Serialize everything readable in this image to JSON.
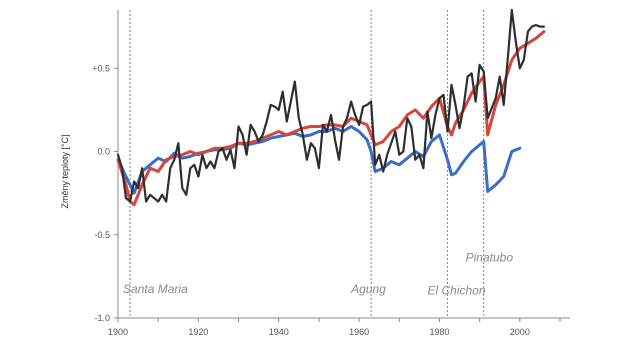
{
  "chart_data": {
    "type": "line",
    "title": "",
    "xlabel": "",
    "ylabel": "Změny teploty [°C]",
    "xlim": [
      1900,
      2010
    ],
    "ylim": [
      -1.0,
      0.85
    ],
    "x_ticks": [
      1900,
      1920,
      1940,
      1960,
      1980,
      2000
    ],
    "y_ticks": [
      {
        "value": 0.5,
        "label": "+0.5"
      },
      {
        "value": 0.0,
        "label": "0.0"
      },
      {
        "value": -0.5,
        "label": "-0.5"
      },
      {
        "value": -1.0,
        "label": "-1.0"
      }
    ],
    "grid": false,
    "series": [
      {
        "color": "#3a6cc8",
        "x": [
          1900,
          1902,
          1904,
          1906,
          1908,
          1910,
          1912,
          1914,
          1916,
          1918,
          1920,
          1922,
          1924,
          1926,
          1928,
          1930,
          1932,
          1934,
          1936,
          1938,
          1940,
          1942,
          1944,
          1946,
          1948,
          1950,
          1952,
          1954,
          1956,
          1958,
          1960,
          1962,
          1963,
          1964,
          1966,
          1968,
          1970,
          1972,
          1974,
          1976,
          1978,
          1980,
          1982,
          1983,
          1984,
          1986,
          1988,
          1990,
          1991,
          1992,
          1994,
          1996,
          1998,
          2000
        ],
        "y": [
          -0.05,
          -0.15,
          -0.25,
          -0.12,
          -0.08,
          -0.04,
          -0.06,
          -0.01,
          -0.04,
          -0.03,
          -0.01,
          0.0,
          0.01,
          0.01,
          0.02,
          0.05,
          0.04,
          0.05,
          0.06,
          0.08,
          0.09,
          0.1,
          0.11,
          0.09,
          0.1,
          0.12,
          0.12,
          0.14,
          0.12,
          0.15,
          0.12,
          0.07,
          0.0,
          -0.12,
          -0.1,
          -0.06,
          -0.08,
          -0.04,
          0.0,
          -0.03,
          0.06,
          0.1,
          -0.05,
          -0.14,
          -0.13,
          -0.06,
          0.0,
          0.04,
          0.06,
          -0.24,
          -0.2,
          -0.15,
          0.0,
          0.02
        ]
      },
      {
        "color": "#d8453c",
        "x": [
          1900,
          1902,
          1903,
          1904,
          1906,
          1908,
          1910,
          1912,
          1914,
          1916,
          1918,
          1920,
          1922,
          1924,
          1926,
          1928,
          1930,
          1932,
          1934,
          1936,
          1938,
          1940,
          1942,
          1944,
          1946,
          1948,
          1950,
          1952,
          1954,
          1956,
          1958,
          1960,
          1962,
          1963,
          1964,
          1966,
          1968,
          1970,
          1972,
          1974,
          1976,
          1978,
          1980,
          1982,
          1983,
          1984,
          1986,
          1988,
          1990,
          1991,
          1992,
          1994,
          1996,
          1998,
          2000,
          2002,
          2004,
          2006
        ],
        "y": [
          -0.05,
          -0.2,
          -0.3,
          -0.32,
          -0.2,
          -0.1,
          -0.12,
          -0.05,
          -0.03,
          -0.02,
          0.0,
          -0.02,
          0.0,
          0.02,
          0.02,
          0.03,
          0.05,
          0.05,
          0.06,
          0.08,
          0.1,
          0.12,
          0.1,
          0.12,
          0.14,
          0.15,
          0.15,
          0.16,
          0.16,
          0.15,
          0.2,
          0.18,
          0.16,
          0.1,
          0.04,
          0.06,
          0.12,
          0.15,
          0.22,
          0.25,
          0.2,
          0.27,
          0.32,
          0.15,
          0.1,
          0.17,
          0.25,
          0.35,
          0.42,
          0.45,
          0.1,
          0.28,
          0.4,
          0.55,
          0.62,
          0.65,
          0.68,
          0.72
        ]
      },
      {
        "color": "#2e2e2e",
        "x": [
          1900,
          1901,
          1902,
          1903,
          1904,
          1905,
          1906,
          1907,
          1908,
          1909,
          1910,
          1911,
          1912,
          1913,
          1914,
          1915,
          1916,
          1917,
          1918,
          1919,
          1920,
          1921,
          1922,
          1923,
          1924,
          1925,
          1926,
          1927,
          1928,
          1929,
          1930,
          1931,
          1932,
          1933,
          1934,
          1935,
          1936,
          1937,
          1938,
          1939,
          1940,
          1941,
          1942,
          1943,
          1944,
          1945,
          1946,
          1947,
          1948,
          1949,
          1950,
          1951,
          1952,
          1953,
          1954,
          1955,
          1956,
          1957,
          1958,
          1959,
          1960,
          1961,
          1962,
          1963,
          1964,
          1965,
          1966,
          1967,
          1968,
          1969,
          1970,
          1971,
          1972,
          1973,
          1974,
          1975,
          1976,
          1977,
          1978,
          1979,
          1980,
          1981,
          1982,
          1983,
          1984,
          1985,
          1986,
          1987,
          1988,
          1989,
          1990,
          1991,
          1992,
          1993,
          1994,
          1995,
          1996,
          1997,
          1998,
          1999,
          2000,
          2001,
          2002,
          2003,
          2004,
          2005,
          2006
        ],
        "y": [
          -0.02,
          -0.1,
          -0.28,
          -0.3,
          -0.18,
          -0.22,
          -0.1,
          -0.3,
          -0.26,
          -0.28,
          -0.3,
          -0.26,
          -0.3,
          -0.1,
          -0.05,
          0.05,
          -0.22,
          -0.26,
          -0.1,
          -0.08,
          -0.15,
          -0.02,
          -0.1,
          -0.06,
          -0.1,
          0.0,
          0.02,
          -0.05,
          0.01,
          -0.1,
          0.15,
          0.1,
          -0.02,
          0.16,
          0.12,
          0.06,
          0.1,
          0.18,
          0.28,
          0.27,
          0.25,
          0.36,
          0.18,
          0.3,
          0.42,
          0.2,
          0.1,
          -0.05,
          0.05,
          0.02,
          -0.1,
          0.16,
          0.12,
          0.22,
          0.07,
          -0.05,
          0.15,
          0.2,
          0.3,
          0.22,
          0.16,
          0.27,
          0.28,
          0.3,
          -0.08,
          -0.02,
          -0.12,
          -0.02,
          0.05,
          0.12,
          -0.02,
          0.0,
          0.2,
          0.15,
          -0.05,
          -0.02,
          -0.1,
          0.24,
          0.08,
          0.22,
          0.32,
          0.34,
          0.12,
          0.4,
          0.28,
          0.14,
          0.27,
          0.45,
          0.47,
          0.3,
          0.52,
          0.48,
          0.2,
          0.26,
          0.32,
          0.45,
          0.28,
          0.56,
          0.85,
          0.66,
          0.5,
          0.55,
          0.72,
          0.75,
          0.76,
          0.75,
          0.75
        ]
      }
    ],
    "annotations": [
      {
        "x": 1903,
        "label": "Santa Maria",
        "label_y": -0.85,
        "line_top": 0.85
      },
      {
        "x": 1963,
        "label": "Agung",
        "label_y": -0.85,
        "line_top": 0.85
      },
      {
        "x": 1982,
        "label": "El Chichon",
        "label_y": -0.86,
        "line_top": 0.85
      },
      {
        "x": 1991,
        "label": "Pinatubo",
        "label_y": -0.66,
        "line_top": 0.85
      }
    ],
    "colors": {
      "axis": "#888888",
      "volcano_line": "#888888",
      "volcano_label": "#8a8a8a"
    }
  }
}
